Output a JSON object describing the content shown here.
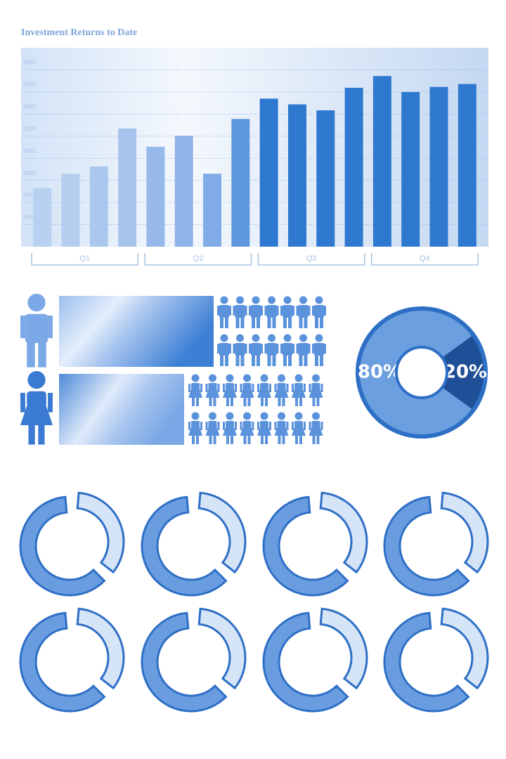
{
  "chart_data": [
    {
      "type": "bar",
      "title": "Investment Returns to Date",
      "categories": [
        null,
        null,
        null,
        null,
        null,
        null,
        null,
        null,
        null,
        null,
        null,
        null,
        null,
        null,
        null,
        null
      ],
      "values": [
        2650,
        3300,
        3630,
        5350,
        4520,
        5020,
        3300,
        5780,
        6700,
        6440,
        6170,
        7190,
        7720,
        7000,
        7230,
        7360
      ],
      "colors": [
        "#b9d1f0",
        "#b5cef0",
        "#abc7ee",
        "#a7c4ed",
        "#97b9ea",
        "#8fb4e9",
        "#80abe6",
        "#5f97de",
        "#2f78d0",
        "#2f78d0",
        "#2f78d0",
        "#2f78d0",
        "#2f78d0",
        "#2f78d0",
        "#2f78d0",
        "#2f78d0"
      ],
      "groups": [
        "Q1",
        "Q2",
        "Q3",
        "Q4"
      ],
      "ylim": [
        0,
        9000
      ],
      "yticks": [
        1000,
        2000,
        3000,
        4000,
        5000,
        6000,
        7000,
        8000
      ],
      "grid": true
    },
    {
      "type": "pie",
      "values": [
        80,
        20
      ],
      "value_labels": [
        "80%",
        "20%"
      ],
      "colors": [
        "#6b9fe0",
        "#1f4f96"
      ]
    }
  ]
}
